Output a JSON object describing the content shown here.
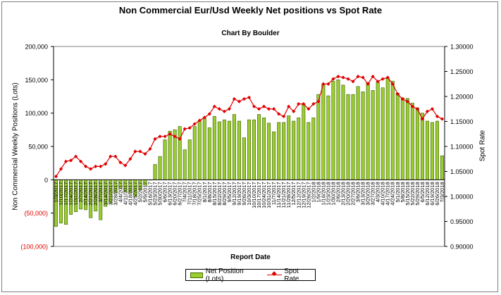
{
  "chart_data": {
    "type": "bar+line",
    "title": "Non Commercial Eur/Usd Weekly Net positions vs Spot Rate",
    "subtitle": "Chart By Boulder",
    "xlabel": "Report Date",
    "ylabel": "Non Commercial Weekly Positions (Lots)",
    "y2label": "Spot Rate",
    "ylim": [
      -100000,
      200000
    ],
    "y2lim": [
      0.9,
      1.3
    ],
    "yticks": [
      -100000,
      -50000,
      0,
      50000,
      100000,
      150000,
      200000
    ],
    "ytick_labels": [
      "(100,000)",
      "(50,000)",
      "0",
      "50,000",
      "100,000",
      "150,000",
      "200,000"
    ],
    "y2ticks": [
      0.9,
      0.95,
      1.0,
      1.05,
      1.1,
      1.15,
      1.2,
      1.25,
      1.3
    ],
    "y2tick_labels": [
      "0.90000",
      "0.95000",
      "1.00000",
      "1.05000",
      "1.10000",
      "1.15000",
      "1.20000",
      "1.25000",
      "1.30000"
    ],
    "categories": [
      "1/3/2017",
      "1/10/2017",
      "1/17/2017",
      "1/24/2017",
      "1/31/2017",
      "2/7/2017",
      "2/14/2017",
      "2/21/2017",
      "2/28/2017",
      "3/7/2017",
      "3/14/2017",
      "3/21/2017",
      "3/28/2017",
      "4/4/2017",
      "4/11/2017",
      "4/18/2017",
      "4/25/2017",
      "5/2/2017",
      "5/9/2017",
      "5/16/2017",
      "5/23/2017",
      "5/30/2017",
      "6/6/2017",
      "6/13/2017",
      "6/20/2017",
      "6/27/2017",
      "7/4/2017",
      "7/11/2017",
      "7/18/2017",
      "7/25/2017",
      "8/1/2017",
      "8/8/2017",
      "8/15/2017",
      "8/22/2017",
      "8/29/2017",
      "9/5/2017",
      "9/12/2017",
      "9/19/2017",
      "9/26/2017",
      "10/3/2017",
      "10/10/2017",
      "10/17/2017",
      "10/24/2017",
      "10/31/2017",
      "11/7/2017",
      "11/14/2017",
      "11/21/2017",
      "11/28/2017",
      "12/5/2017",
      "12/12/2017",
      "12/19/2017",
      "12/26/2017",
      "1/2/2018",
      "1/9/2018",
      "1/16/2018",
      "1/23/2018",
      "1/30/2018",
      "2/6/2018",
      "2/13/2018",
      "2/20/2018",
      "2/27/2018",
      "3/6/2018",
      "3/13/2018",
      "3/20/2018",
      "3/27/2018",
      "4/3/2018",
      "4/10/2018",
      "4/17/2018",
      "4/24/2018",
      "5/1/2018",
      "5/8/2018",
      "5/15/2018",
      "5/22/2018",
      "5/29/2018",
      "6/5/2018",
      "6/12/2018",
      "6/19/2018",
      "6/26/2018",
      "7/3/2018"
    ],
    "series": [
      {
        "name": "Net Position (Lots)",
        "type": "bar",
        "axis": "left",
        "color": "#9acd32",
        "values": [
          -70000,
          -65000,
          -67000,
          -52000,
          -48000,
          -44000,
          -45000,
          -57000,
          -47000,
          -60000,
          -40000,
          -35000,
          -20000,
          -13000,
          -18000,
          -20000,
          -25000,
          -15000,
          -8000,
          0,
          23000,
          35000,
          60000,
          73000,
          75000,
          80000,
          45000,
          60000,
          80000,
          88000,
          92000,
          78000,
          95000,
          87000,
          90000,
          88000,
          98000,
          88000,
          63000,
          90000,
          90000,
          98000,
          93000,
          85000,
          72000,
          86000,
          86000,
          96000,
          88000,
          93000,
          114000,
          86000,
          93000,
          128000,
          144000,
          126000,
          148000,
          150000,
          142000,
          128000,
          128000,
          140000,
          132000,
          146000,
          134000,
          146000,
          138000,
          152000,
          148000,
          130000,
          123000,
          122000,
          115000,
          108000,
          100000,
          88000,
          86000,
          88000,
          36000
        ]
      },
      {
        "name": "Spot Rate",
        "type": "line",
        "axis": "right",
        "color": "#e00000",
        "values": [
          1.04,
          1.055,
          1.07,
          1.072,
          1.08,
          1.07,
          1.06,
          1.055,
          1.06,
          1.06,
          1.065,
          1.08,
          1.08,
          1.068,
          1.062,
          1.075,
          1.09,
          1.09,
          1.085,
          1.095,
          1.115,
          1.12,
          1.12,
          1.125,
          1.12,
          1.115,
          1.135,
          1.137,
          1.145,
          1.152,
          1.158,
          1.165,
          1.18,
          1.175,
          1.17,
          1.175,
          1.195,
          1.19,
          1.195,
          1.198,
          1.18,
          1.175,
          1.18,
          1.175,
          1.175,
          1.165,
          1.16,
          1.18,
          1.17,
          1.185,
          1.185,
          1.175,
          1.185,
          1.19,
          1.225,
          1.225,
          1.235,
          1.24,
          1.238,
          1.235,
          1.23,
          1.24,
          1.238,
          1.225,
          1.24,
          1.23,
          1.235,
          1.238,
          1.225,
          1.205,
          1.195,
          1.19,
          1.18,
          1.175,
          1.155,
          1.17,
          1.175,
          1.16,
          1.155
        ]
      }
    ],
    "legend_position": "bottom"
  }
}
